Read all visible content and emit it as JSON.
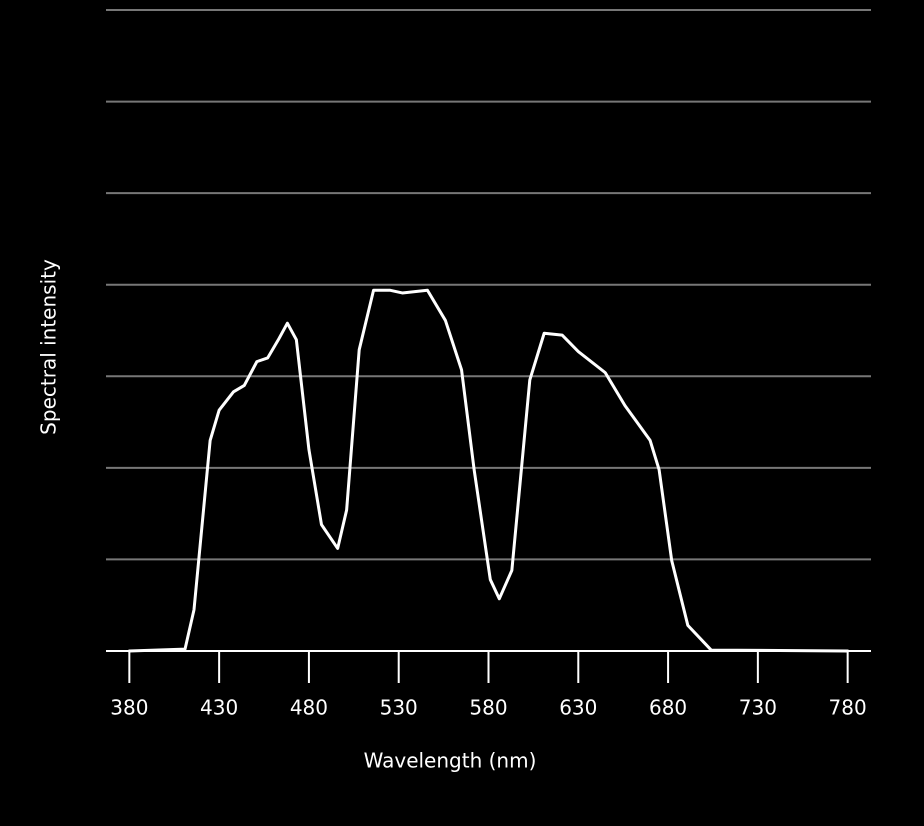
{
  "chart_data": {
    "type": "line",
    "x_label": "Wavelength (nm)",
    "y_label": "Spectral intensity",
    "xlim": [
      367,
      793
    ],
    "xticks": [
      380,
      430,
      480,
      530,
      580,
      630,
      680,
      730,
      780
    ],
    "ylim": [
      0,
      7
    ],
    "ygrid": [
      1,
      2,
      3,
      4,
      5,
      6,
      7
    ],
    "grid_color": "#777777",
    "axis_color": "#ffffff",
    "series": [
      {
        "color": "#ffffff",
        "x": [
          380,
          411,
          416,
          425,
          430,
          438,
          444,
          451,
          457,
          463,
          468,
          473,
          480,
          487,
          496,
          501,
          508,
          516,
          525,
          532,
          546,
          556,
          565,
          572,
          581,
          586,
          593,
          603,
          611,
          621,
          630,
          645,
          656,
          670,
          675,
          682,
          691,
          704,
          780
        ],
        "values": [
          0,
          0.02,
          0.45,
          2.3,
          2.63,
          2.83,
          2.9,
          3.16,
          3.2,
          3.4,
          3.58,
          3.4,
          2.2,
          1.38,
          1.12,
          1.54,
          3.29,
          3.94,
          3.94,
          3.91,
          3.94,
          3.61,
          3.07,
          1.98,
          0.78,
          0.57,
          0.88,
          2.96,
          3.47,
          3.45,
          3.27,
          3.04,
          2.68,
          2.3,
          1.98,
          0.99,
          0.28,
          0.01,
          0
        ]
      }
    ]
  }
}
